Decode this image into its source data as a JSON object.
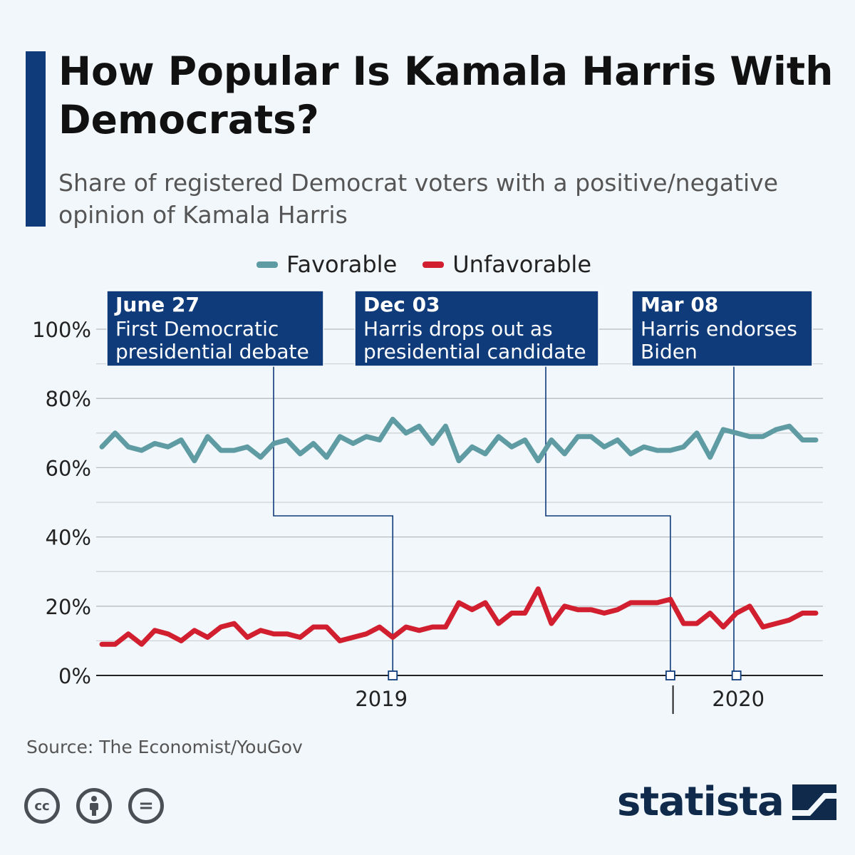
{
  "header": {
    "title": "How Popular Is Kamala Harris With Democrats?",
    "subtitle": "Share of registered Democrat voters with a positive/negative opinion of Kamala Harris"
  },
  "colors": {
    "accent": "#0f3b7a",
    "favorable": "#5f9ba3",
    "unfavorable": "#d11f2f",
    "annotation_bg": "#0f3b7a"
  },
  "footer": {
    "source": "Source: The Economist/YouGov",
    "brand": "statista",
    "license_icons": [
      "cc-icon",
      "attribution-icon",
      "no-derivatives-icon"
    ],
    "license_labels": [
      "cc",
      "=",
      ""
    ]
  },
  "chart_data": {
    "type": "line",
    "x": [
      1,
      2,
      3,
      4,
      5,
      6,
      7,
      8,
      9,
      10,
      11,
      12,
      13,
      14,
      15,
      16,
      17,
      18,
      19,
      20,
      21,
      22,
      23,
      24,
      25,
      26,
      27,
      28,
      29,
      30,
      31,
      32,
      33,
      34,
      35,
      36,
      37,
      38,
      39,
      40,
      41,
      42,
      43,
      44,
      45,
      46,
      47,
      48,
      49,
      50,
      51,
      52,
      53,
      54,
      55
    ],
    "x_tick_labels": [
      {
        "label": "2019",
        "at": 23
      },
      {
        "label": "2020",
        "at": 50
      }
    ],
    "year_divider_at": 44.2,
    "series": [
      {
        "name": "Favorable",
        "values": [
          66,
          70,
          66,
          65,
          67,
          66,
          68,
          62,
          69,
          65,
          65,
          66,
          63,
          67,
          68,
          64,
          67,
          63,
          69,
          67,
          69,
          68,
          74,
          70,
          72,
          67,
          72,
          62,
          66,
          64,
          69,
          66,
          68,
          62,
          68,
          64,
          69,
          69,
          66,
          68,
          64,
          66,
          65,
          65,
          66,
          70,
          63,
          71,
          70,
          69,
          69,
          71,
          72,
          68,
          68
        ]
      },
      {
        "name": "Unfavorable",
        "values": [
          9,
          9,
          12,
          9,
          13,
          12,
          10,
          13,
          11,
          14,
          15,
          11,
          13,
          12,
          12,
          11,
          14,
          14,
          10,
          11,
          12,
          14,
          11,
          14,
          13,
          14,
          14,
          21,
          19,
          21,
          15,
          18,
          18,
          25,
          15,
          20,
          19,
          19,
          18,
          19,
          21,
          21,
          21,
          22,
          15,
          15,
          18,
          14,
          18,
          20,
          14,
          15,
          16,
          18,
          18
        ]
      }
    ],
    "ylim": [
      0,
      100
    ],
    "y_ticks": [
      "0%",
      "20%",
      "40%",
      "60%",
      "80%",
      "100%"
    ],
    "grid": true,
    "legend_position": "top-center",
    "annotations": [
      {
        "date": "June 27",
        "text_lines": [
          "First Democratic",
          "presidential debate"
        ],
        "x": 23
      },
      {
        "date": "Dec 03",
        "text_lines": [
          "Harris drops out as",
          "presidential candidate"
        ],
        "x": 44
      },
      {
        "date": "Mar 08",
        "text_lines": [
          "Harris endorses",
          "Biden"
        ],
        "x": 49
      }
    ]
  }
}
